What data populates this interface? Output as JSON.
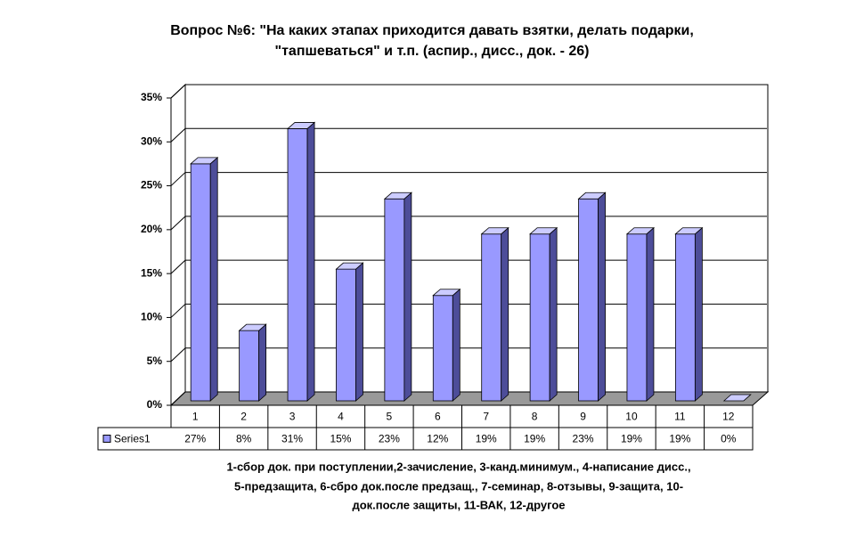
{
  "chart_data": {
    "type": "bar3d",
    "title": [
      "Вопрос №6: \"На каких этапах приходится давать взятки, делать подарки,",
      "\"тапшеваться\" и т.п. (аспир., дисс., док. - 26)"
    ],
    "x_label": [
      "1-сбор док. при поступлении,2-зачисление, 3-канд.минимум., 4-написание дисс.,",
      "5-предзащита, 6-сбро док.после предзащ., 7-семинар, 8-отзывы, 9-защита, 10-",
      "док.после защиты, 11-ВАК, 12-другое"
    ],
    "categories": [
      "1",
      "2",
      "3",
      "4",
      "5",
      "6",
      "7",
      "8",
      "9",
      "10",
      "11",
      "12"
    ],
    "series": [
      {
        "name": "Series1",
        "color": "#9999ff",
        "values": [
          27,
          8,
          31,
          15,
          23,
          12,
          19,
          19,
          23,
          19,
          19,
          0
        ],
        "value_labels": [
          "27%",
          "8%",
          "31%",
          "15%",
          "23%",
          "12%",
          "19%",
          "19%",
          "23%",
          "19%",
          "19%",
          "0%"
        ]
      }
    ],
    "ylim": [
      0,
      35
    ],
    "yticks": [
      {
        "value": 0,
        "label": "0%"
      },
      {
        "value": 5,
        "label": "5%"
      },
      {
        "value": 10,
        "label": "10%"
      },
      {
        "value": 15,
        "label": "15%"
      },
      {
        "value": 20,
        "label": "20%"
      },
      {
        "value": 25,
        "label": "25%"
      },
      {
        "value": 30,
        "label": "30%"
      },
      {
        "value": 35,
        "label": "35%"
      }
    ],
    "grid": true
  }
}
